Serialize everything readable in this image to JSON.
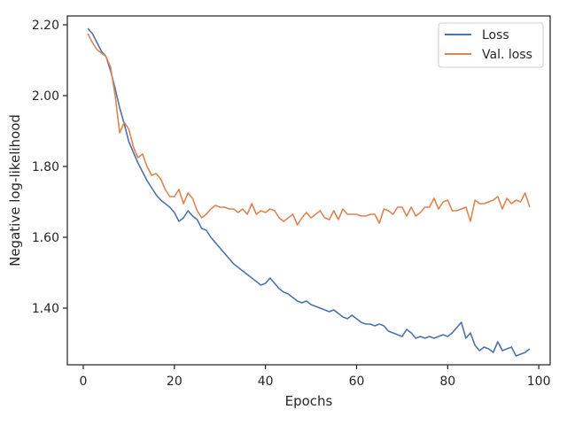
{
  "chart_data": {
    "type": "line",
    "title": "",
    "xlabel": "Epochs",
    "ylabel": "Negative log-likelihood",
    "xlim": [
      -3.5,
      102.5
    ],
    "ylim": [
      1.24,
      2.225
    ],
    "xticks": [
      0,
      20,
      40,
      60,
      80,
      100
    ],
    "xtick_labels": [
      "0",
      "20",
      "40",
      "60",
      "80",
      "100"
    ],
    "yticks": [
      1.4,
      1.6,
      1.8,
      2.0,
      2.2
    ],
    "ytick_labels": [
      "1.40",
      "1.60",
      "1.80",
      "2.00",
      "2.20"
    ],
    "grid": false,
    "legend_position": "top-right",
    "series": [
      {
        "name": "Loss",
        "color": "#4c72b0",
        "x": [
          1,
          2,
          3,
          4,
          5,
          6,
          7,
          8,
          9,
          10,
          11,
          12,
          13,
          14,
          15,
          16,
          17,
          18,
          19,
          20,
          21,
          22,
          23,
          24,
          25,
          26,
          27,
          28,
          29,
          30,
          31,
          32,
          33,
          34,
          35,
          36,
          37,
          38,
          39,
          40,
          41,
          42,
          43,
          44,
          45,
          46,
          47,
          48,
          49,
          50,
          51,
          52,
          53,
          54,
          55,
          56,
          57,
          58,
          59,
          60,
          61,
          62,
          63,
          64,
          65,
          66,
          67,
          68,
          69,
          70,
          71,
          72,
          73,
          74,
          75,
          76,
          77,
          78,
          79,
          80,
          81,
          82,
          83,
          84,
          85,
          86,
          87,
          88,
          89,
          90,
          91,
          92,
          93,
          94,
          95,
          96,
          97,
          98
        ],
        "values": [
          2.19,
          2.175,
          2.15,
          2.125,
          2.11,
          2.07,
          2.02,
          1.965,
          1.92,
          1.87,
          1.84,
          1.81,
          1.785,
          1.76,
          1.74,
          1.72,
          1.705,
          1.695,
          1.685,
          1.67,
          1.645,
          1.655,
          1.675,
          1.66,
          1.65,
          1.625,
          1.62,
          1.6,
          1.585,
          1.57,
          1.555,
          1.54,
          1.525,
          1.515,
          1.505,
          1.495,
          1.485,
          1.475,
          1.465,
          1.47,
          1.485,
          1.47,
          1.455,
          1.445,
          1.44,
          1.43,
          1.42,
          1.415,
          1.42,
          1.41,
          1.405,
          1.4,
          1.395,
          1.39,
          1.395,
          1.385,
          1.375,
          1.37,
          1.38,
          1.37,
          1.36,
          1.355,
          1.355,
          1.35,
          1.355,
          1.35,
          1.335,
          1.33,
          1.325,
          1.32,
          1.34,
          1.33,
          1.315,
          1.32,
          1.315,
          1.32,
          1.315,
          1.32,
          1.325,
          1.32,
          1.33,
          1.345,
          1.36,
          1.315,
          1.33,
          1.295,
          1.28,
          1.29,
          1.285,
          1.275,
          1.305,
          1.28,
          1.285,
          1.29,
          1.265,
          1.27,
          1.275,
          1.285
        ]
      },
      {
        "name": "Val. loss",
        "color": "#dd8452",
        "x": [
          1,
          2,
          3,
          4,
          5,
          6,
          7,
          8,
          9,
          10,
          11,
          12,
          13,
          14,
          15,
          16,
          17,
          18,
          19,
          20,
          21,
          22,
          23,
          24,
          25,
          26,
          27,
          28,
          29,
          30,
          31,
          32,
          33,
          34,
          35,
          36,
          37,
          38,
          39,
          40,
          41,
          42,
          43,
          44,
          45,
          46,
          47,
          48,
          49,
          50,
          51,
          52,
          53,
          54,
          55,
          56,
          57,
          58,
          59,
          60,
          61,
          62,
          63,
          64,
          65,
          66,
          67,
          68,
          69,
          70,
          71,
          72,
          73,
          74,
          75,
          76,
          77,
          78,
          79,
          80,
          81,
          82,
          83,
          84,
          85,
          86,
          87,
          88,
          89,
          90,
          91,
          92,
          93,
          94,
          95,
          96,
          97,
          98
        ],
        "values": [
          2.175,
          2.15,
          2.13,
          2.12,
          2.11,
          2.08,
          2.0,
          1.895,
          1.925,
          1.905,
          1.855,
          1.825,
          1.835,
          1.8,
          1.775,
          1.78,
          1.765,
          1.735,
          1.715,
          1.715,
          1.735,
          1.695,
          1.725,
          1.71,
          1.675,
          1.655,
          1.665,
          1.68,
          1.69,
          1.685,
          1.685,
          1.68,
          1.68,
          1.67,
          1.68,
          1.665,
          1.695,
          1.665,
          1.675,
          1.67,
          1.68,
          1.675,
          1.655,
          1.645,
          1.655,
          1.665,
          1.635,
          1.655,
          1.67,
          1.655,
          1.665,
          1.675,
          1.655,
          1.65,
          1.675,
          1.65,
          1.68,
          1.665,
          1.665,
          1.665,
          1.66,
          1.66,
          1.665,
          1.665,
          1.64,
          1.68,
          1.675,
          1.665,
          1.685,
          1.685,
          1.66,
          1.685,
          1.66,
          1.67,
          1.685,
          1.685,
          1.71,
          1.68,
          1.7,
          1.705,
          1.675,
          1.675,
          1.68,
          1.685,
          1.645,
          1.705,
          1.695,
          1.695,
          1.7,
          1.705,
          1.715,
          1.68,
          1.71,
          1.695,
          1.705,
          1.7,
          1.725,
          1.685
        ]
      }
    ]
  }
}
